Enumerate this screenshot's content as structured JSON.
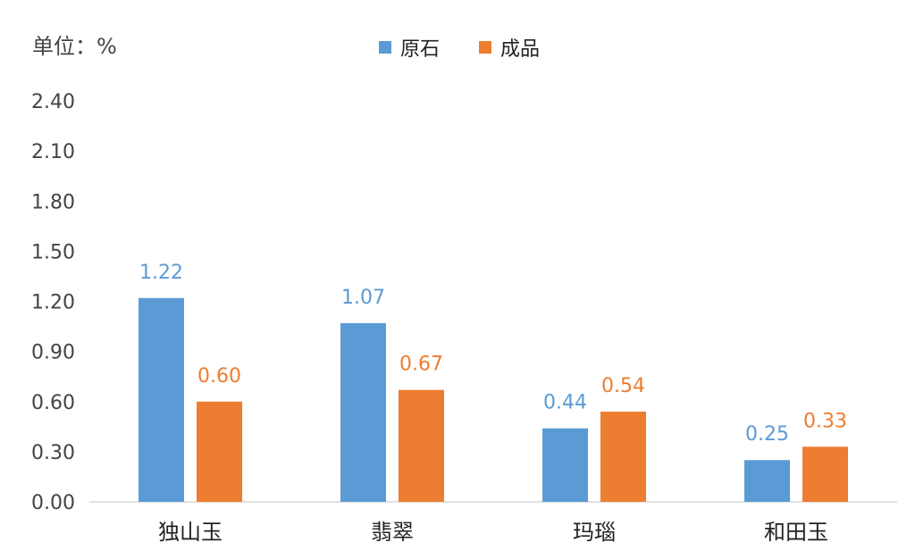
{
  "chart_data": {
    "type": "bar",
    "unit_label": "单位：%",
    "categories": [
      "独山玉",
      "翡翠",
      "玛瑙",
      "和田玉"
    ],
    "series": [
      {
        "name": "原石",
        "values": [
          1.22,
          1.07,
          0.44,
          0.25
        ],
        "value_labels": [
          "1.22",
          "1.07",
          "0.44",
          "0.25"
        ],
        "color": "#5b9bd5"
      },
      {
        "name": "成品",
        "values": [
          0.6,
          0.67,
          0.54,
          0.33
        ],
        "value_labels": [
          "0.60",
          "0.67",
          "0.54",
          "0.33"
        ],
        "color": "#ed7d31"
      }
    ],
    "y_ticks": [
      "0.00",
      "0.30",
      "0.60",
      "0.90",
      "1.20",
      "1.50",
      "1.80",
      "2.10",
      "2.40"
    ],
    "ylim": [
      0,
      2.4
    ],
    "legend_position": "top",
    "grid": false
  }
}
